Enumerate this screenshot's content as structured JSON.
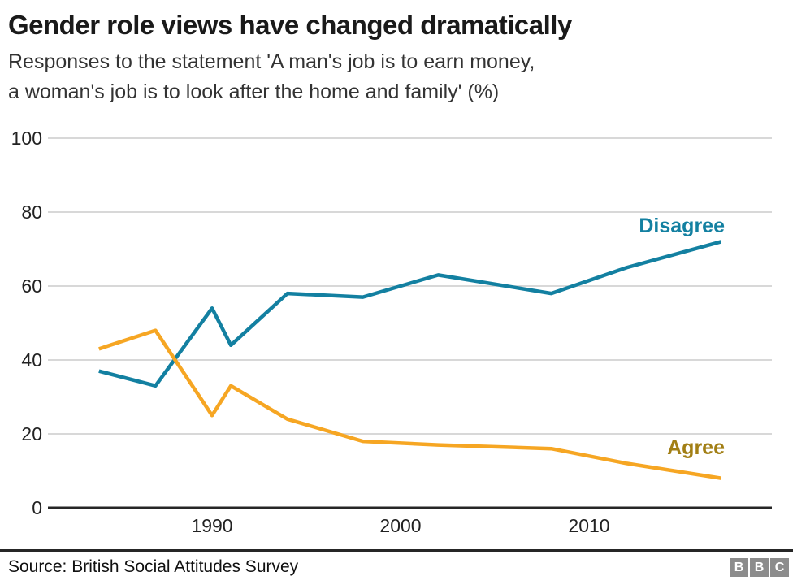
{
  "title": "Gender role views have changed dramatically",
  "subtitle_line1": "Responses to the statement 'A man's job is to earn money,",
  "subtitle_line2": "a woman's job is to look after the home and family' (%)",
  "source": "Source: British Social Attitudes Survey",
  "logo": {
    "letters": [
      "B",
      "B",
      "C"
    ]
  },
  "colors": {
    "disagree": "#1380A1",
    "agree": "#F6A623",
    "agree_label": "#A27F15",
    "disagree_label": "#1380A1",
    "grid": "#CCCCCC",
    "axis": "#262626",
    "text": "#222222"
  },
  "chart_data": {
    "type": "line",
    "title": "Gender role views have changed dramatically",
    "subtitle": "Responses to the statement 'A man's job is to earn money, a woman's job is to look after the home and family' (%)",
    "x": [
      1984,
      1987,
      1990,
      1991,
      1994,
      1998,
      2002,
      2008,
      2012,
      2017
    ],
    "series": [
      {
        "name": "Disagree",
        "color_key": "disagree",
        "values": [
          37,
          33,
          54,
          44,
          58,
          57,
          63,
          58,
          65,
          72
        ]
      },
      {
        "name": "Agree",
        "color_key": "agree",
        "values": [
          43,
          48,
          25,
          33,
          24,
          18,
          17,
          16,
          12,
          8
        ]
      }
    ],
    "xlabel": "",
    "ylabel": "",
    "ylim": [
      0,
      100
    ],
    "y_ticks": [
      0,
      20,
      40,
      60,
      80,
      100
    ],
    "x_ticks": [
      1990,
      2000,
      2010
    ],
    "grid": true,
    "legend_position": "inline-end-of-line-labels"
  }
}
